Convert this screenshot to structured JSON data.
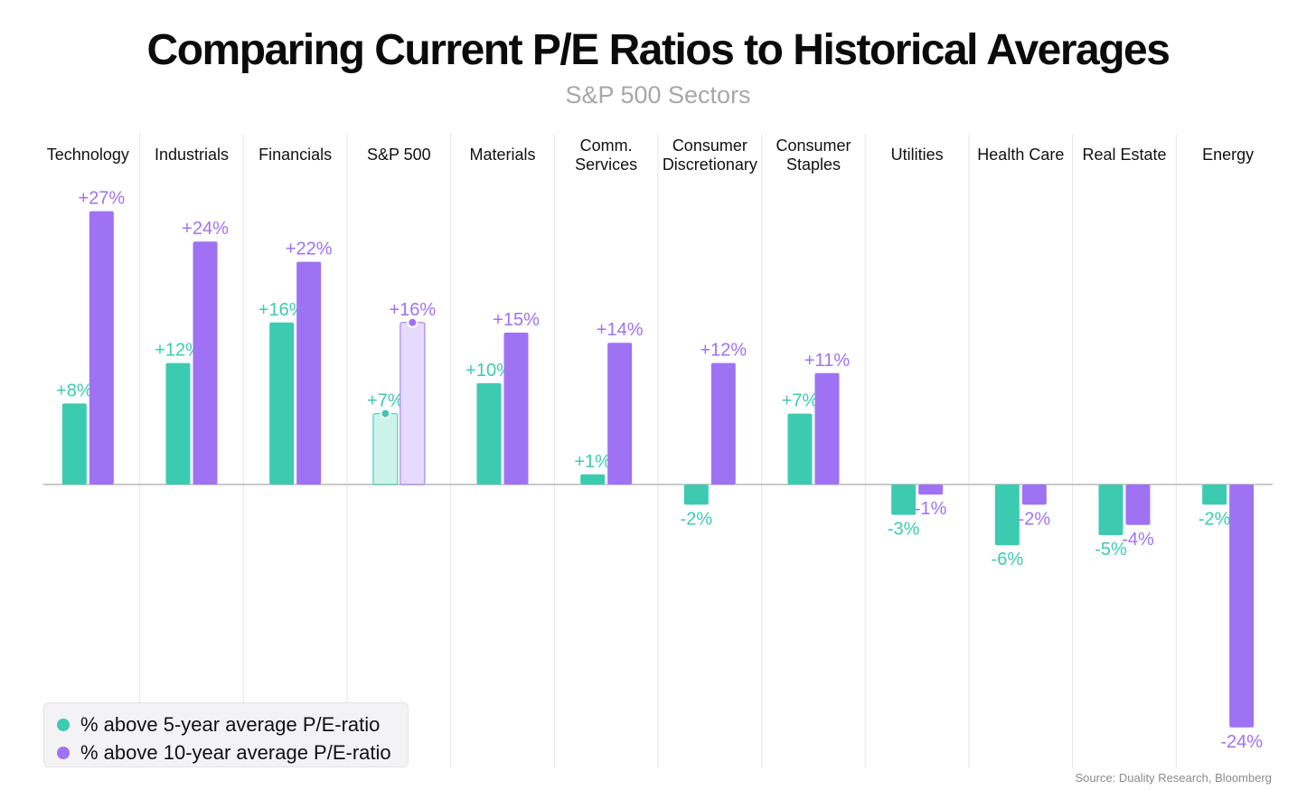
{
  "header": {
    "title": "Comparing Current P/E Ratios to Historical Averages",
    "subtitle": "S&P 500 Sectors"
  },
  "colors": {
    "five_year": "#3ccbb0",
    "ten_year": "#9f72f3",
    "highlight_five_year": "#cdf2ea",
    "highlight_ten_year": "#e6dbfc",
    "axis": "#c9c9c9",
    "divider": "#e6e6e6"
  },
  "legend": {
    "items": [
      {
        "label": "% above 5-year average P/E-ratio",
        "color": "#3ccbb0"
      },
      {
        "label": "% above 10-year average P/E-ratio",
        "color": "#9f72f3"
      }
    ]
  },
  "source": "Source: Duality Research, Bloomberg",
  "chart_data": {
    "type": "bar",
    "title": "Comparing Current P/E Ratios to Historical Averages",
    "subtitle": "S&P 500 Sectors",
    "categories": [
      [
        "Technology"
      ],
      [
        "Industrials"
      ],
      [
        "Financials"
      ],
      [
        "S&P 500"
      ],
      [
        "Materials"
      ],
      [
        "Comm.",
        "Services"
      ],
      [
        "Consumer",
        "Discretionary"
      ],
      [
        "Consumer",
        "Staples"
      ],
      [
        "Utilities"
      ],
      [
        "Health Care"
      ],
      [
        "Real Estate"
      ],
      [
        "Energy"
      ]
    ],
    "highlight_category": "S&P 500",
    "series": [
      {
        "name": "% above 5-year average P/E-ratio",
        "values": [
          8,
          12,
          16,
          7,
          10,
          1,
          -2,
          7,
          -3,
          -6,
          -5,
          -2
        ],
        "labels": [
          "+8%",
          "+12%",
          "+16%",
          "+7%",
          "+10%",
          "+1%",
          "-2%",
          "+7%",
          "-3%",
          "-6%",
          "-5%",
          "-2%"
        ]
      },
      {
        "name": "% above 10-year average P/E-ratio",
        "values": [
          27,
          24,
          22,
          16,
          15,
          14,
          12,
          11,
          -1,
          -2,
          -4,
          -24
        ],
        "labels": [
          "+27%",
          "+24%",
          "+22%",
          "+16%",
          "+15%",
          "+14%",
          "+12%",
          "+11%",
          "-1%",
          "-2%",
          "-4%",
          "-24%"
        ]
      }
    ],
    "xlabel": "",
    "ylabel": "",
    "ylim": [
      -24,
      27
    ],
    "grid": false,
    "legend_position": "bottom-left"
  }
}
